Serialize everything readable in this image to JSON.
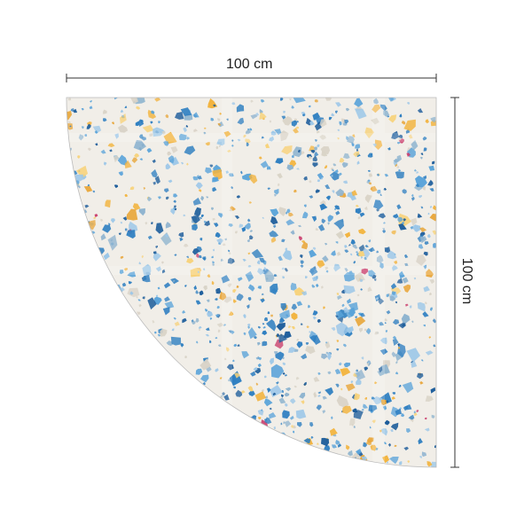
{
  "dimensions": {
    "width_label": "100 cm",
    "height_label": "100 cm"
  },
  "product": {
    "shape": "quarter-circle",
    "pattern": "terrazzo",
    "colors": {
      "base": "#f1eee8",
      "chips": [
        "#2f7fc1",
        "#5aa3d9",
        "#9cc7e8",
        "#1d5d9b",
        "#f2b440",
        "#f7d27a",
        "#d9d3c7",
        "#c93a6a",
        "#8fb4cf",
        "#e8a63a"
      ]
    }
  }
}
